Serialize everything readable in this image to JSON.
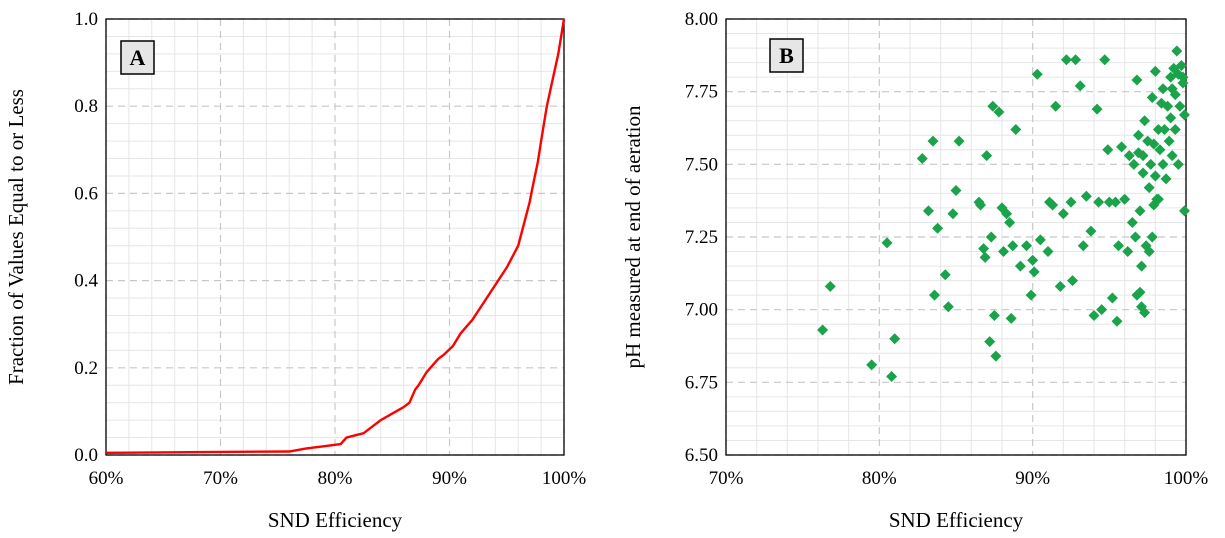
{
  "colors": {
    "cdf_line": "#ff0000",
    "scatter_marker": "#1aa34a",
    "major_grid": "#c8c8c8",
    "minor_grid": "#e6e6e6",
    "label_box_fill": "#e6e6e6"
  },
  "chart_data": [
    {
      "type": "line",
      "panel_label": "A",
      "xlabel": "SND Efficiency",
      "ylabel": "Fraction of Values Equal to or Less",
      "xlim": [
        60,
        100
      ],
      "ylim": [
        0,
        1
      ],
      "x_ticks": [
        60,
        70,
        80,
        90,
        100
      ],
      "x_tick_labels": [
        "60%",
        "70%",
        "80%",
        "90%",
        "100%"
      ],
      "y_ticks": [
        0,
        0.2,
        0.4,
        0.6,
        0.8,
        1.0
      ],
      "y_tick_labels": [
        "0.0",
        "0.2",
        "0.4",
        "0.6",
        "0.8",
        "1.0"
      ],
      "grid": true,
      "series": [
        {
          "x": [
            60,
            70,
            76,
            77.5,
            79,
            80.5,
            81,
            82.5,
            83.5,
            84,
            85,
            86,
            86.5,
            87,
            87.3,
            88,
            89,
            89.5,
            90.3,
            91,
            92,
            93,
            94,
            95,
            96,
            96.5,
            97,
            97.3,
            97.7,
            98,
            98.5,
            99,
            99.5,
            100
          ],
          "y": [
            0.005,
            0.007,
            0.008,
            0.015,
            0.02,
            0.025,
            0.04,
            0.05,
            0.07,
            0.08,
            0.095,
            0.11,
            0.12,
            0.15,
            0.16,
            0.19,
            0.22,
            0.23,
            0.25,
            0.28,
            0.31,
            0.35,
            0.39,
            0.43,
            0.48,
            0.53,
            0.58,
            0.62,
            0.67,
            0.72,
            0.8,
            0.86,
            0.92,
            1.0
          ]
        }
      ]
    },
    {
      "type": "scatter",
      "panel_label": "B",
      "xlabel": "SND Efficiency",
      "ylabel": "pH measured at end of aeration",
      "xlim": [
        70,
        100
      ],
      "ylim": [
        6.5,
        8.0
      ],
      "x_ticks": [
        70,
        80,
        90,
        100
      ],
      "x_tick_labels": [
        "70%",
        "80%",
        "90%",
        "100%"
      ],
      "y_ticks": [
        6.5,
        6.75,
        7.0,
        7.25,
        7.5,
        7.75,
        8.0
      ],
      "y_tick_labels": [
        "6.50",
        "6.75",
        "7.00",
        "7.25",
        "7.50",
        "7.75",
        "8.00"
      ],
      "grid": true,
      "series": [
        {
          "points": [
            [
              76.3,
              6.93
            ],
            [
              76.8,
              7.08
            ],
            [
              79.5,
              6.81
            ],
            [
              80.5,
              7.23
            ],
            [
              80.8,
              6.77
            ],
            [
              81.0,
              6.9
            ],
            [
              82.8,
              7.52
            ],
            [
              83.2,
              7.34
            ],
            [
              83.5,
              7.58
            ],
            [
              83.6,
              7.05
            ],
            [
              83.8,
              7.28
            ],
            [
              84.3,
              7.12
            ],
            [
              84.5,
              7.01
            ],
            [
              84.8,
              7.33
            ],
            [
              85.0,
              7.41
            ],
            [
              85.2,
              7.58
            ],
            [
              86.5,
              7.37
            ],
            [
              86.6,
              7.36
            ],
            [
              86.8,
              7.21
            ],
            [
              86.9,
              7.18
            ],
            [
              87.0,
              7.53
            ],
            [
              87.2,
              6.89
            ],
            [
              87.3,
              7.25
            ],
            [
              87.4,
              7.7
            ],
            [
              87.6,
              6.84
            ],
            [
              87.5,
              6.98
            ],
            [
              87.8,
              7.68
            ],
            [
              88.0,
              7.35
            ],
            [
              88.1,
              7.2
            ],
            [
              88.3,
              7.33
            ],
            [
              88.5,
              7.3
            ],
            [
              88.6,
              6.97
            ],
            [
              88.7,
              7.22
            ],
            [
              88.9,
              7.62
            ],
            [
              89.2,
              7.15
            ],
            [
              89.6,
              7.22
            ],
            [
              89.9,
              7.05
            ],
            [
              90.0,
              7.17
            ],
            [
              90.1,
              7.13
            ],
            [
              90.3,
              7.81
            ],
            [
              90.5,
              7.24
            ],
            [
              91.0,
              7.2
            ],
            [
              91.1,
              7.37
            ],
            [
              91.3,
              7.36
            ],
            [
              91.5,
              7.7
            ],
            [
              91.8,
              7.08
            ],
            [
              92.0,
              7.33
            ],
            [
              92.2,
              7.86
            ],
            [
              92.5,
              7.37
            ],
            [
              92.6,
              7.1
            ],
            [
              92.8,
              7.86
            ],
            [
              93.1,
              7.77
            ],
            [
              93.3,
              7.22
            ],
            [
              93.5,
              7.39
            ],
            [
              93.8,
              7.27
            ],
            [
              94.0,
              6.98
            ],
            [
              94.2,
              7.69
            ],
            [
              94.3,
              7.37
            ],
            [
              94.5,
              7.0
            ],
            [
              94.7,
              7.86
            ],
            [
              94.9,
              7.55
            ],
            [
              95.0,
              7.37
            ],
            [
              95.2,
              7.04
            ],
            [
              95.4,
              7.37
            ],
            [
              95.5,
              6.96
            ],
            [
              95.6,
              7.22
            ],
            [
              95.8,
              7.56
            ],
            [
              96.0,
              7.38
            ],
            [
              96.2,
              7.2
            ],
            [
              96.3,
              7.53
            ],
            [
              96.5,
              7.3
            ],
            [
              96.6,
              7.5
            ],
            [
              96.7,
              7.25
            ],
            [
              96.8,
              7.05
            ],
            [
              96.8,
              7.79
            ],
            [
              96.9,
              7.6
            ],
            [
              97.0,
              7.34
            ],
            [
              97.0,
              7.06
            ],
            [
              97.1,
              7.15
            ],
            [
              97.1,
              7.01
            ],
            [
              97.2,
              7.53
            ],
            [
              97.2,
              7.47
            ],
            [
              97.3,
              7.65
            ],
            [
              97.3,
              6.99
            ],
            [
              97.4,
              7.22
            ],
            [
              97.5,
              7.58
            ],
            [
              97.6,
              7.42
            ],
            [
              97.6,
              7.2
            ],
            [
              97.7,
              7.5
            ],
            [
              97.8,
              7.25
            ],
            [
              97.8,
              7.73
            ],
            [
              97.9,
              7.57
            ],
            [
              98.0,
              7.46
            ],
            [
              98.0,
              7.82
            ],
            [
              98.1,
              7.38
            ],
            [
              98.2,
              7.62
            ],
            [
              98.3,
              7.55
            ],
            [
              98.4,
              7.71
            ],
            [
              98.5,
              7.5
            ],
            [
              98.5,
              7.76
            ],
            [
              98.6,
              7.62
            ],
            [
              98.7,
              7.45
            ],
            [
              98.8,
              7.7
            ],
            [
              98.9,
              7.58
            ],
            [
              99.0,
              7.8
            ],
            [
              99.0,
              7.66
            ],
            [
              99.1,
              7.53
            ],
            [
              99.1,
              7.76
            ],
            [
              99.2,
              7.83
            ],
            [
              99.3,
              7.62
            ],
            [
              99.3,
              7.74
            ],
            [
              99.4,
              7.89
            ],
            [
              99.5,
              7.81
            ],
            [
              99.5,
              7.5
            ],
            [
              99.6,
              7.7
            ],
            [
              99.7,
              7.84
            ],
            [
              99.8,
              7.78
            ],
            [
              99.9,
              7.67
            ],
            [
              99.9,
              7.34
            ],
            [
              99.8,
              7.8
            ],
            [
              98.2,
              7.38
            ],
            [
              97.9,
              7.36
            ],
            [
              96.9,
              7.54
            ]
          ]
        }
      ]
    }
  ]
}
